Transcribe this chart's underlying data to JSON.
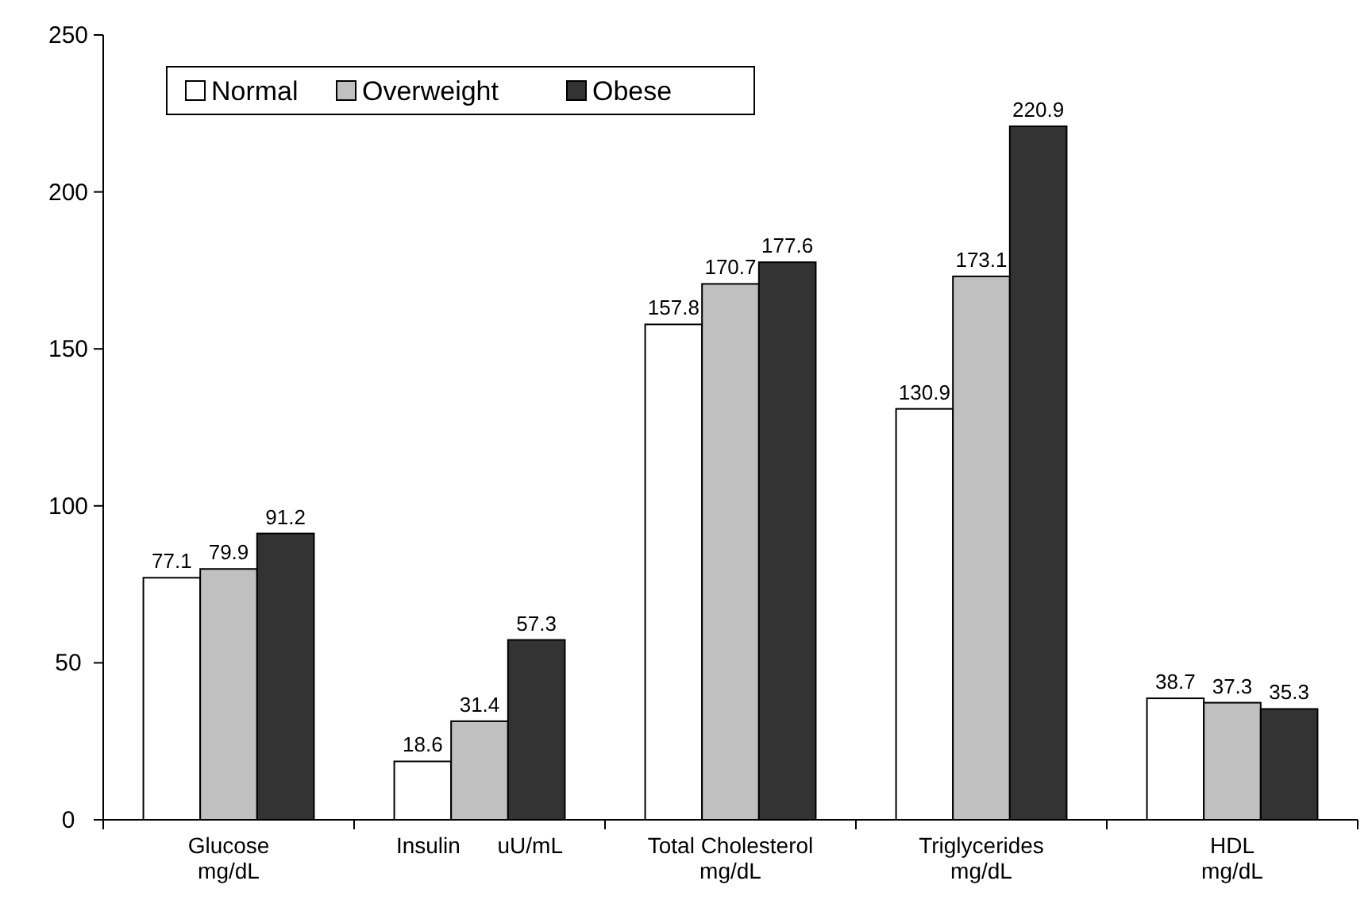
{
  "chart_data": {
    "type": "bar",
    "categories": [
      "Glucose\nmg/dL",
      "Insulin      uU/mL",
      "Total Cholesterol\nmg/dL",
      "Triglycerides\nmg/dL",
      "HDL\nmg/dL"
    ],
    "series": [
      {
        "name": "Normal",
        "color": "#ffffff",
        "values": [
          77.1,
          18.6,
          157.8,
          130.9,
          38.7
        ]
      },
      {
        "name": "Overweight",
        "color": "#c0c0c0",
        "values": [
          79.9,
          31.4,
          170.7,
          173.1,
          37.3
        ]
      },
      {
        "name": "Obese",
        "color": "#333333",
        "values": [
          91.2,
          57.3,
          177.6,
          220.9,
          35.3
        ]
      }
    ],
    "ylim": [
      0,
      250
    ],
    "yticks": [
      0,
      50,
      100,
      150,
      200,
      250
    ],
    "grid": false,
    "legend": "top left",
    "data_labels": true
  }
}
